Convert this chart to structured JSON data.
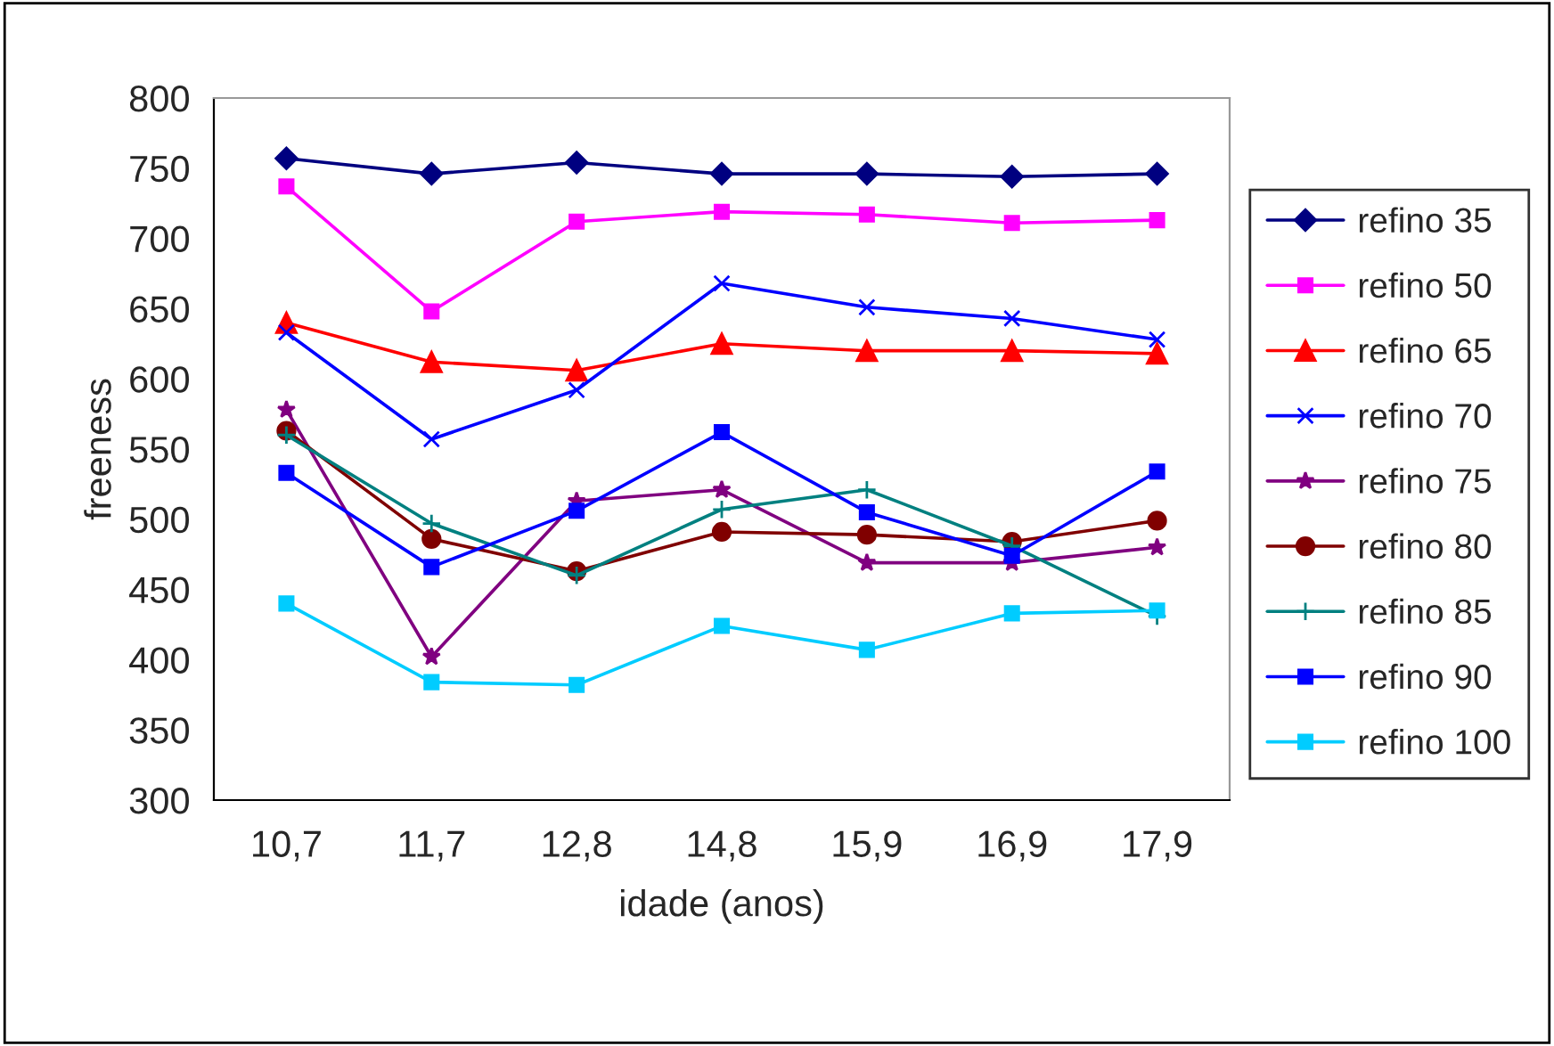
{
  "chart_data": {
    "type": "line",
    "xlabel": "idade (anos)",
    "ylabel": "freeness",
    "categories": [
      "10,7",
      "11,7",
      "12,8",
      "14,8",
      "15,9",
      "16,9",
      "17,9"
    ],
    "ylim": [
      300,
      800
    ],
    "yticks": [
      300,
      350,
      400,
      450,
      500,
      550,
      600,
      650,
      700,
      750,
      800
    ],
    "grid": false,
    "legend": "right",
    "line_style": "solid",
    "series": [
      {
        "name": "refino 35",
        "color": "#000080",
        "marker": "diamond",
        "values": [
          757,
          746,
          754,
          746,
          746,
          744,
          746
        ]
      },
      {
        "name": "refino 50",
        "color": "#ff00ff",
        "marker": "square",
        "values": [
          737,
          648,
          712,
          719,
          717,
          711,
          713
        ]
      },
      {
        "name": "refino 65",
        "color": "#ff0000",
        "marker": "triangle",
        "values": [
          640,
          612,
          606,
          625,
          620,
          620,
          618
        ]
      },
      {
        "name": "refino 70",
        "color": "#0000ff",
        "marker": "cross",
        "values": [
          633,
          557,
          592,
          668,
          651,
          643,
          628
        ]
      },
      {
        "name": "refino 75",
        "color": "#800080",
        "marker": "star",
        "values": [
          578,
          402,
          513,
          521,
          469,
          469,
          480
        ]
      },
      {
        "name": "refino 80",
        "color": "#800000",
        "marker": "circle",
        "values": [
          563,
          486,
          463,
          491,
          489,
          484,
          499
        ]
      },
      {
        "name": "refino 85",
        "color": "#008080",
        "marker": "plus",
        "values": [
          560,
          497,
          460,
          507,
          521,
          481,
          431
        ]
      },
      {
        "name": "refino 90",
        "color": "#0000ff",
        "marker": "square",
        "values": [
          533,
          466,
          506,
          562,
          505,
          474,
          534
        ]
      },
      {
        "name": "refino 100",
        "color": "#00ccff",
        "marker": "square",
        "values": [
          440,
          384,
          382,
          424,
          407,
          433,
          435
        ]
      }
    ]
  }
}
